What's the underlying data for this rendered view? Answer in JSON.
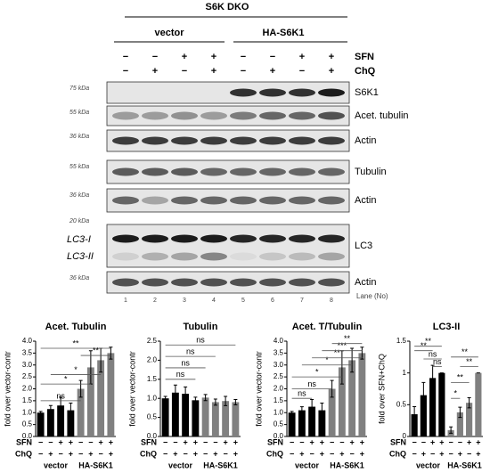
{
  "blot": {
    "title": "S6K DKO",
    "groups": [
      "vector",
      "HA-S6K1"
    ],
    "treatments": [
      {
        "label": "SFN",
        "signs": [
          "−",
          "−",
          "+",
          "+",
          "−",
          "−",
          "+",
          "+"
        ]
      },
      {
        "label": "ChQ",
        "signs": [
          "−",
          "+",
          "−",
          "+",
          "−",
          "+",
          "−",
          "+"
        ]
      }
    ],
    "panels": [
      {
        "marker": "75 kDa",
        "label": "S6K1"
      },
      {
        "marker": "55 kDa",
        "label": "Acet. tubulin"
      },
      {
        "marker": "36 kDa",
        "label": "Actin"
      },
      {
        "marker": "55 kDa",
        "label": "Tubulin"
      },
      {
        "marker": "36 kDa",
        "label": "Actin"
      },
      {
        "marker": "20 kDa",
        "label": "LC3",
        "bands": [
          "LC3-I",
          "LC3-II"
        ]
      },
      {
        "marker": "36 kDa",
        "label": "Actin"
      }
    ],
    "lanes": [
      "1",
      "2",
      "3",
      "4",
      "5",
      "6",
      "7",
      "8"
    ],
    "lane_label": "Lane (No)"
  },
  "chart_axis": {
    "treatments": [
      {
        "label": "SFN",
        "signs": [
          "−",
          "−",
          "+",
          "+",
          "−",
          "−",
          "+",
          "+"
        ]
      },
      {
        "label": "ChQ",
        "signs": [
          "−",
          "+",
          "−",
          "+",
          "−",
          "+",
          "−",
          "+"
        ]
      }
    ],
    "groups": [
      "vector",
      "HA-S6K1"
    ]
  },
  "chart_data": [
    {
      "type": "bar",
      "title": "Acet. Tubulin",
      "y_label": "fold over vector-contr",
      "values": [
        1.0,
        1.15,
        1.3,
        1.1,
        2.0,
        2.9,
        3.2,
        3.5
      ],
      "errors": [
        0.05,
        0.15,
        0.35,
        0.3,
        0.35,
        0.7,
        0.5,
        0.25
      ],
      "bar_colors": [
        "#000000",
        "#000000",
        "#000000",
        "#000000",
        "#808080",
        "#808080",
        "#808080",
        "#808080"
      ],
      "ylim": [
        0,
        4
      ],
      "yticks": [
        {
          "value": 0,
          "label": "0.0"
        },
        0.5,
        {
          "value": 1,
          "label": "1.0"
        },
        1.5,
        {
          "value": 2,
          "label": "2.0"
        },
        2.5,
        {
          "value": 3,
          "label": "3.0"
        },
        3.5,
        {
          "value": 4,
          "label": "4.0"
        }
      ],
      "annotations": [
        "ns",
        "*",
        "*",
        "**",
        "**"
      ]
    },
    {
      "type": "bar",
      "title": "Tubulin",
      "y_label": "fold over vector-contr",
      "values": [
        1.0,
        1.15,
        1.12,
        0.95,
        1.02,
        0.9,
        0.93,
        0.9
      ],
      "errors": [
        0.05,
        0.2,
        0.18,
        0.08,
        0.08,
        0.08,
        0.12,
        0.07
      ],
      "bar_colors": [
        "#000000",
        "#000000",
        "#000000",
        "#000000",
        "#808080",
        "#808080",
        "#808080",
        "#808080"
      ],
      "ylim": [
        0,
        2.5
      ],
      "yticks": [
        {
          "value": 0,
          "label": "0.0"
        },
        0.5,
        {
          "value": 1,
          "label": "1.0"
        },
        1.5,
        {
          "value": 2,
          "label": "2.0"
        },
        2.5
      ],
      "annotations": [
        "ns",
        "ns",
        "ns",
        "ns"
      ]
    },
    {
      "type": "bar",
      "title": "Acet. T/Tubulin",
      "y_label": "fold over vector-contr",
      "values": [
        1.0,
        1.1,
        1.25,
        1.1,
        2.0,
        2.9,
        3.2,
        3.5
      ],
      "errors": [
        0.05,
        0.15,
        0.3,
        0.3,
        0.35,
        0.7,
        0.5,
        0.25
      ],
      "bar_colors": [
        "#000000",
        "#000000",
        "#000000",
        "#000000",
        "#808080",
        "#808080",
        "#808080",
        "#808080"
      ],
      "ylim": [
        0,
        4
      ],
      "yticks": [
        {
          "value": 0,
          "label": "0.0"
        },
        0.5,
        {
          "value": 1,
          "label": "1.0"
        },
        1.5,
        {
          "value": 2,
          "label": "2.0"
        },
        2.5,
        {
          "value": 3,
          "label": "3.0"
        },
        3.5,
        {
          "value": 4,
          "label": "4.0"
        }
      ],
      "annotations": [
        "ns",
        "ns",
        "*",
        "*",
        "**",
        "***",
        "**"
      ]
    },
    {
      "type": "bar",
      "title": "LC3-II",
      "y_label": "fold over SFN+ChQ",
      "values": [
        0.35,
        0.65,
        0.92,
        1.0,
        0.1,
        0.38,
        0.53,
        1.0
      ],
      "errors": [
        0.12,
        0.2,
        0.2,
        0,
        0.05,
        0.08,
        0.08,
        0
      ],
      "bar_colors": [
        "#000000",
        "#000000",
        "#000000",
        "#000000",
        "#808080",
        "#808080",
        "#808080",
        "#808080"
      ],
      "ylim": [
        0,
        1.5
      ],
      "yticks": [
        0,
        0.5,
        1,
        1.5
      ],
      "annotations": [
        "**",
        "**",
        "ns",
        "ns",
        "**",
        "*",
        "**",
        "**"
      ]
    }
  ]
}
